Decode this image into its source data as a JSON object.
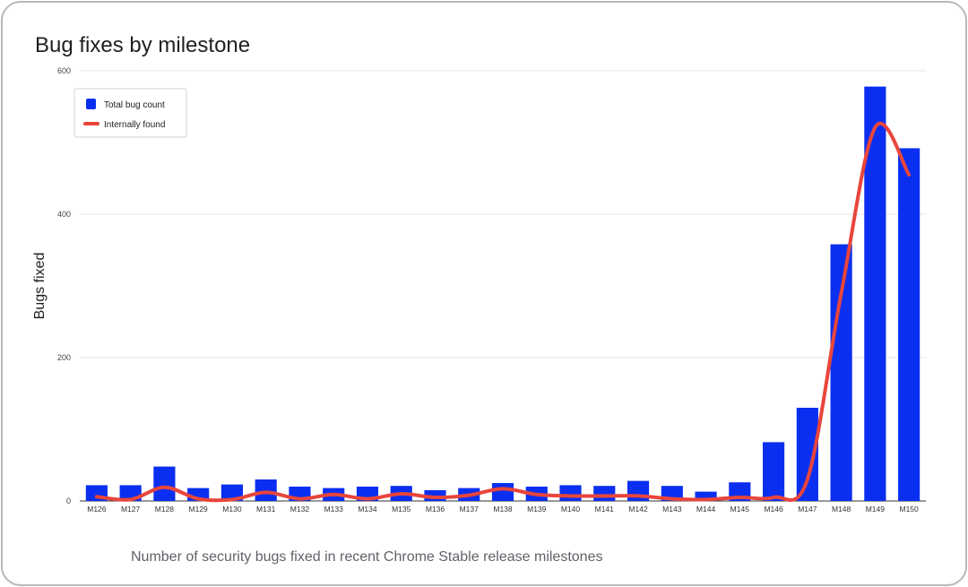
{
  "chart_data": {
    "type": "bar",
    "title": "Bug fixes by milestone",
    "caption": "Number of security bugs fixed in recent Chrome Stable release milestones",
    "ylabel": "Bugs fixed",
    "xlabel": "",
    "ylim": [
      0,
      600
    ],
    "yticks": [
      "0",
      "200",
      "400",
      "600"
    ],
    "grid": true,
    "legend_position": "top-left",
    "categories": [
      "M126",
      "M127",
      "M128",
      "M129",
      "M130",
      "M131",
      "M132",
      "M133",
      "M134",
      "M135",
      "M136",
      "M137",
      "M138",
      "M139",
      "M140",
      "M141",
      "M142",
      "M143",
      "M144",
      "M145",
      "M146",
      "M147",
      "M148",
      "M149",
      "M150"
    ],
    "series": [
      {
        "name": "Total bug count",
        "type": "bar",
        "color": "#0a2ff0",
        "values": [
          22,
          22,
          48,
          18,
          23,
          30,
          20,
          18,
          20,
          21,
          15,
          18,
          25,
          20,
          22,
          21,
          28,
          21,
          13,
          26,
          82,
          130,
          358,
          578,
          492
        ]
      },
      {
        "name": "Internally found",
        "type": "line",
        "smooth": true,
        "color": "#e8453c",
        "values": [
          6,
          2,
          19,
          3,
          2,
          12,
          3,
          9,
          3,
          10,
          5,
          8,
          17,
          9,
          7,
          7,
          7,
          3,
          2,
          5,
          5,
          30,
          290,
          521,
          455
        ]
      }
    ]
  }
}
